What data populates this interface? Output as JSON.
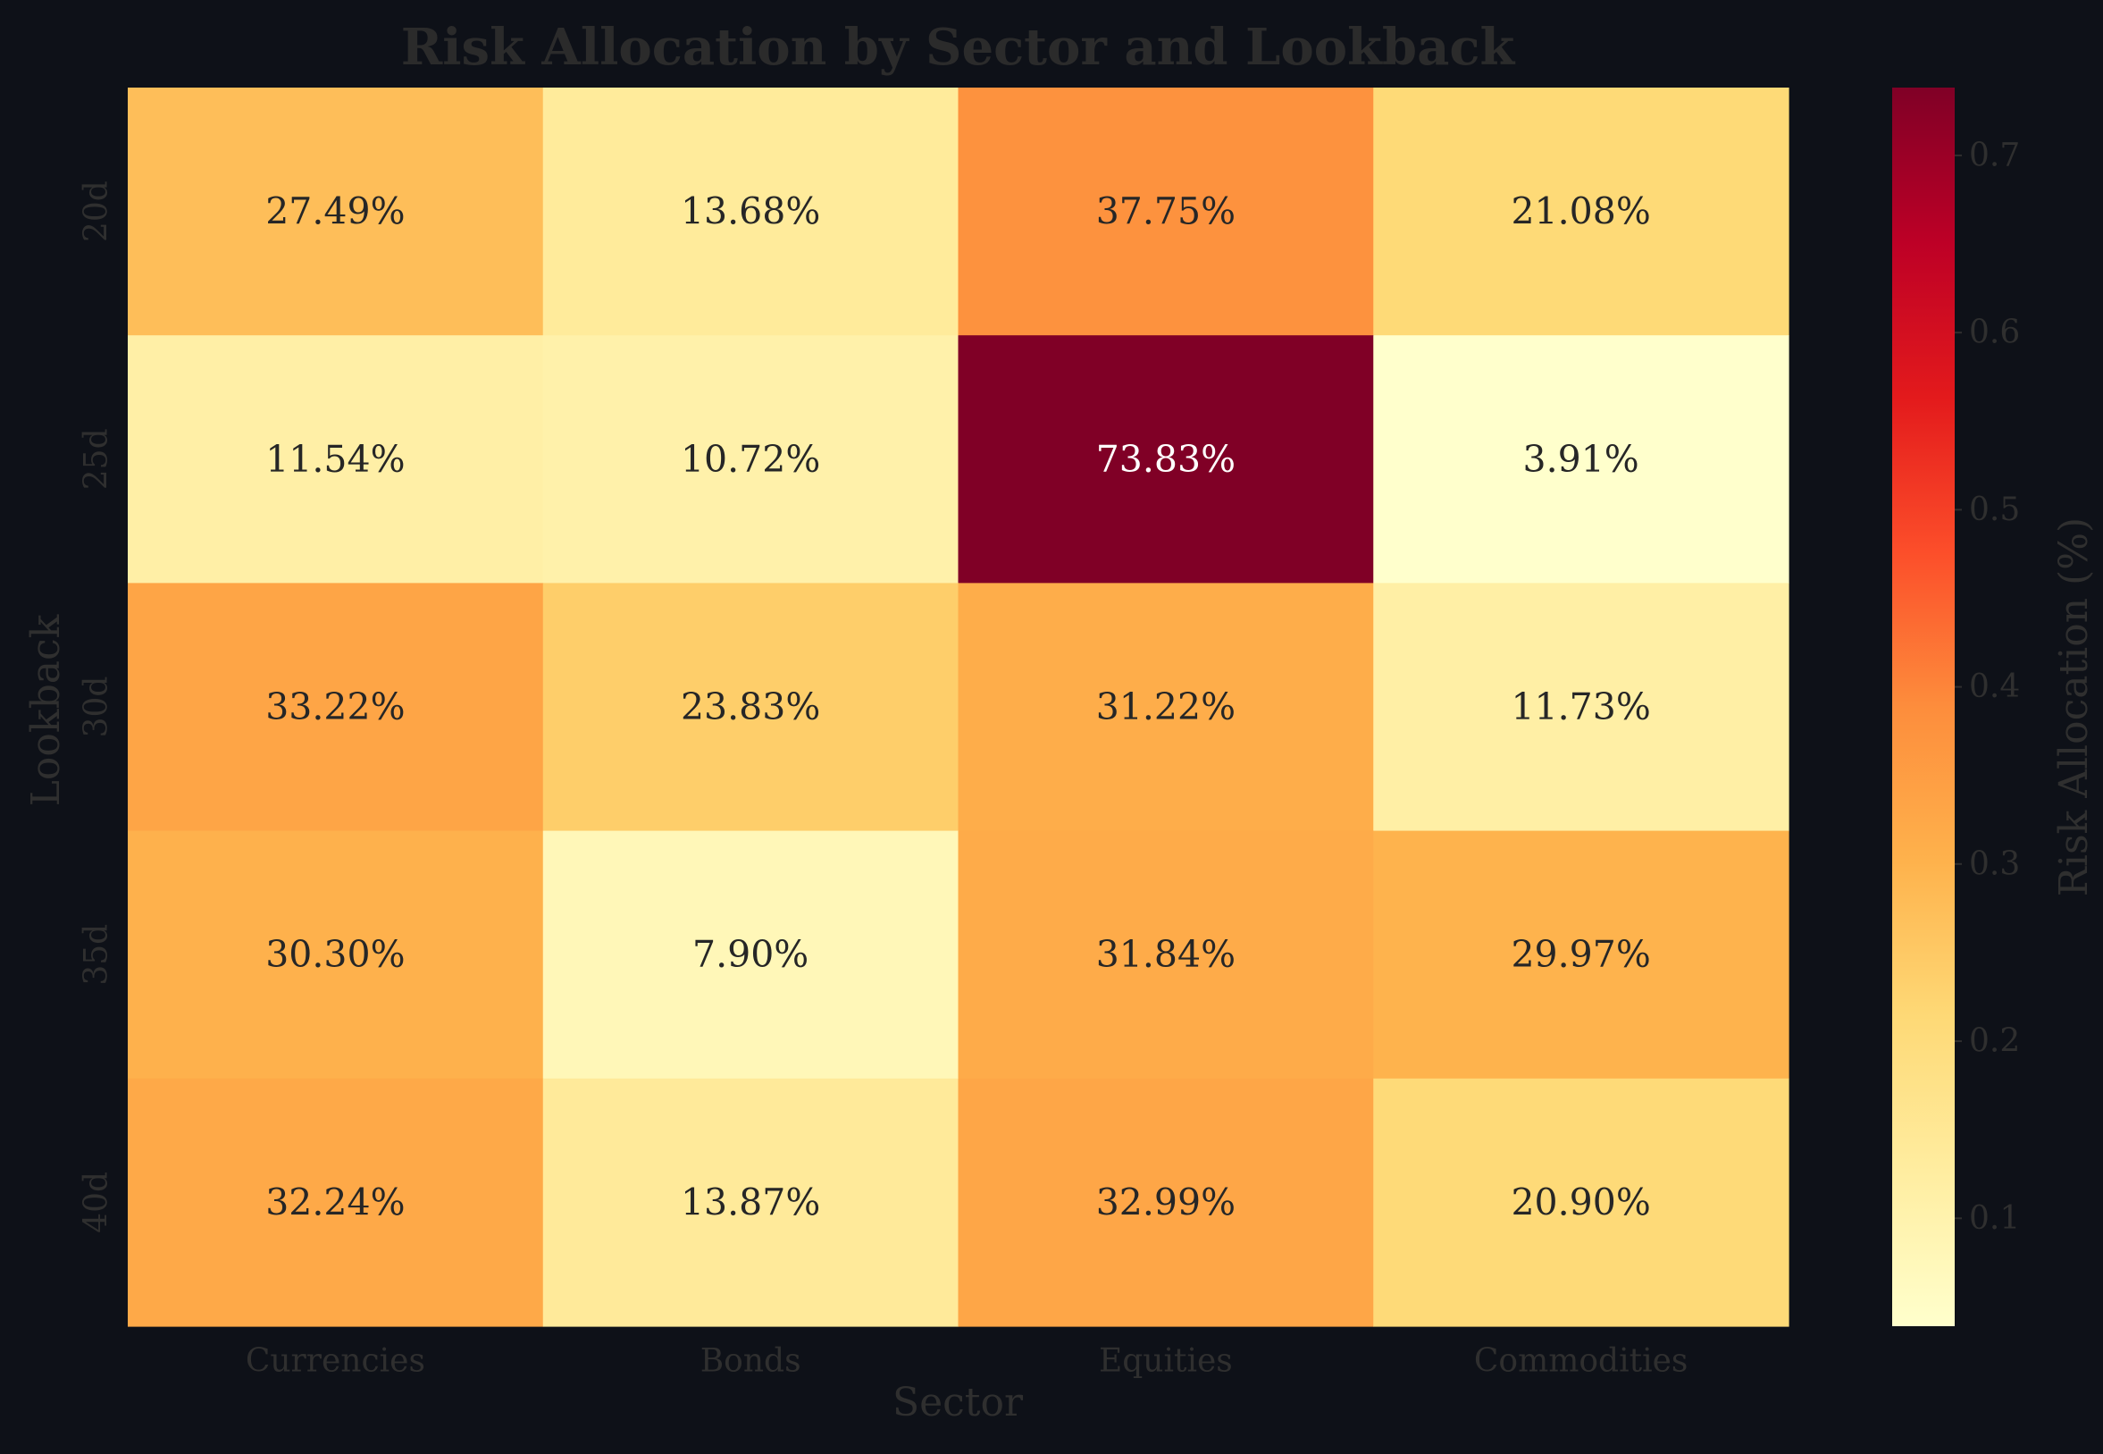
{
  "chart_data": {
    "type": "heatmap",
    "title": "Risk Allocation by Sector and Lookback",
    "xlabel": "Sector",
    "ylabel": "Lookback",
    "x_categories": [
      "Currencies",
      "Bonds",
      "Equities",
      "Commodities"
    ],
    "y_categories": [
      "20d",
      "25d",
      "30d",
      "35d",
      "40d"
    ],
    "values": [
      [
        0.2749,
        0.1368,
        0.3775,
        0.2108
      ],
      [
        0.1154,
        0.1072,
        0.7383,
        0.0391
      ],
      [
        0.3322,
        0.2383,
        0.3122,
        0.1173
      ],
      [
        0.303,
        0.079,
        0.3184,
        0.2997
      ],
      [
        0.3224,
        0.1387,
        0.3299,
        0.209
      ]
    ],
    "cell_labels": [
      [
        "27.49%",
        "13.68%",
        "37.75%",
        "21.08%"
      ],
      [
        "11.54%",
        "10.72%",
        "73.83%",
        "3.91%"
      ],
      [
        "33.22%",
        "23.83%",
        "31.22%",
        "11.73%"
      ],
      [
        "30.30%",
        "7.90%",
        "31.84%",
        "29.97%"
      ],
      [
        "32.24%",
        "13.87%",
        "32.99%",
        "20.90%"
      ]
    ],
    "colormap": "YlOrRd",
    "colorbar": {
      "label": "Risk Allocation (%)",
      "range": [
        0.0391,
        0.7383
      ],
      "ticks": [
        0.1,
        0.2,
        0.3,
        0.4,
        0.5,
        0.6,
        0.7
      ],
      "tick_labels": [
        "0.1",
        "0.2",
        "0.3",
        "0.4",
        "0.5",
        "0.6",
        "0.7"
      ]
    },
    "colors": {
      "background": "#0e1118",
      "text_dark": "#262626",
      "text_light": "#ffffff"
    }
  }
}
